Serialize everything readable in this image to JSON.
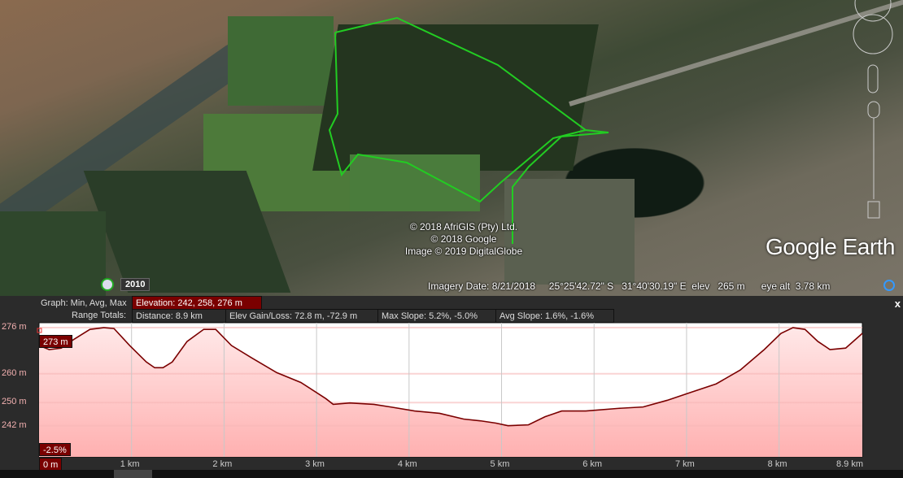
{
  "map": {
    "copyright": [
      "© 2018 AfriGIS (Pty) Ltd.",
      "© 2018 Google",
      "Image © 2019 DigitalGlobe"
    ],
    "logo": "Google Earth",
    "historical_year": "2010",
    "status": {
      "imagery_date": "Imagery Date: 8/21/2018",
      "lat": "25°25'42.72\" S",
      "lon": "31°40'30.19\" E",
      "elev_label": "elev",
      "elev": "265 m",
      "eye_alt_label": "eye alt",
      "eye_alt": "3.78 km"
    },
    "path_color": "#22cc22"
  },
  "profile": {
    "graph_label": "Graph: Min, Avg, Max",
    "elevation": "Elevation: 242, 258, 276 m",
    "range_label": "Range Totals:",
    "distance": "Distance: 8.9 km",
    "gain_loss": "Elev Gain/Loss: 72.8 m, -72.9 m",
    "max_slope": "Max Slope: 5.2%, -5.0%",
    "avg_slope": "Avg Slope: 1.6%, -1.6%",
    "close": "x",
    "cursor_elev": "273 m",
    "cursor_slope": "-2.5%",
    "cursor_dist": "0 m"
  },
  "chart_data": {
    "type": "area",
    "ytick_labels": [
      "276 m",
      "260 m",
      "250 m",
      "242 m"
    ],
    "yticks": [
      276,
      260,
      250,
      242
    ],
    "xtick_labels": [
      "1 km",
      "2 km",
      "3 km",
      "4 km",
      "5 km",
      "6 km",
      "7 km",
      "8 km",
      "8.9 km"
    ],
    "xticks": [
      1,
      2,
      3,
      4,
      5,
      6,
      7,
      8,
      8.9
    ],
    "xlim": [
      0,
      8.9
    ],
    "ylim": [
      231.2,
      277.7
    ],
    "grid": true,
    "line_color": "#7a0000",
    "fill_color": "#ffb0b0",
    "x": [
      0,
      0.11,
      0.24,
      0.37,
      0.55,
      0.7,
      0.81,
      0.98,
      1.16,
      1.25,
      1.34,
      1.44,
      1.6,
      1.78,
      1.91,
      2.08,
      2.3,
      2.57,
      2.83,
      3.1,
      3.18,
      3.36,
      3.62,
      3.8,
      4.06,
      4.33,
      4.59,
      4.77,
      4.94,
      5.07,
      5.29,
      5.47,
      5.65,
      5.91,
      6.26,
      6.53,
      6.79,
      7.05,
      7.32,
      7.58,
      7.84,
      8.02,
      8.15,
      8.28,
      8.42,
      8.55,
      8.72,
      8.9
    ],
    "y": [
      269.8,
      268.4,
      268.9,
      271.8,
      275.4,
      276,
      275.7,
      269.8,
      264.1,
      262.1,
      262.1,
      264.1,
      271.2,
      275.4,
      275.4,
      269.8,
      265.5,
      260.4,
      257.0,
      251.4,
      249.4,
      249.9,
      249.4,
      248.5,
      247.1,
      246.3,
      244.3,
      243.7,
      242.9,
      242,
      242.3,
      245.1,
      247.1,
      247.1,
      248,
      248.5,
      250.8,
      253.6,
      256.5,
      261.3,
      268.4,
      274,
      276,
      275.4,
      271.2,
      268.4,
      268.9,
      274
    ]
  }
}
